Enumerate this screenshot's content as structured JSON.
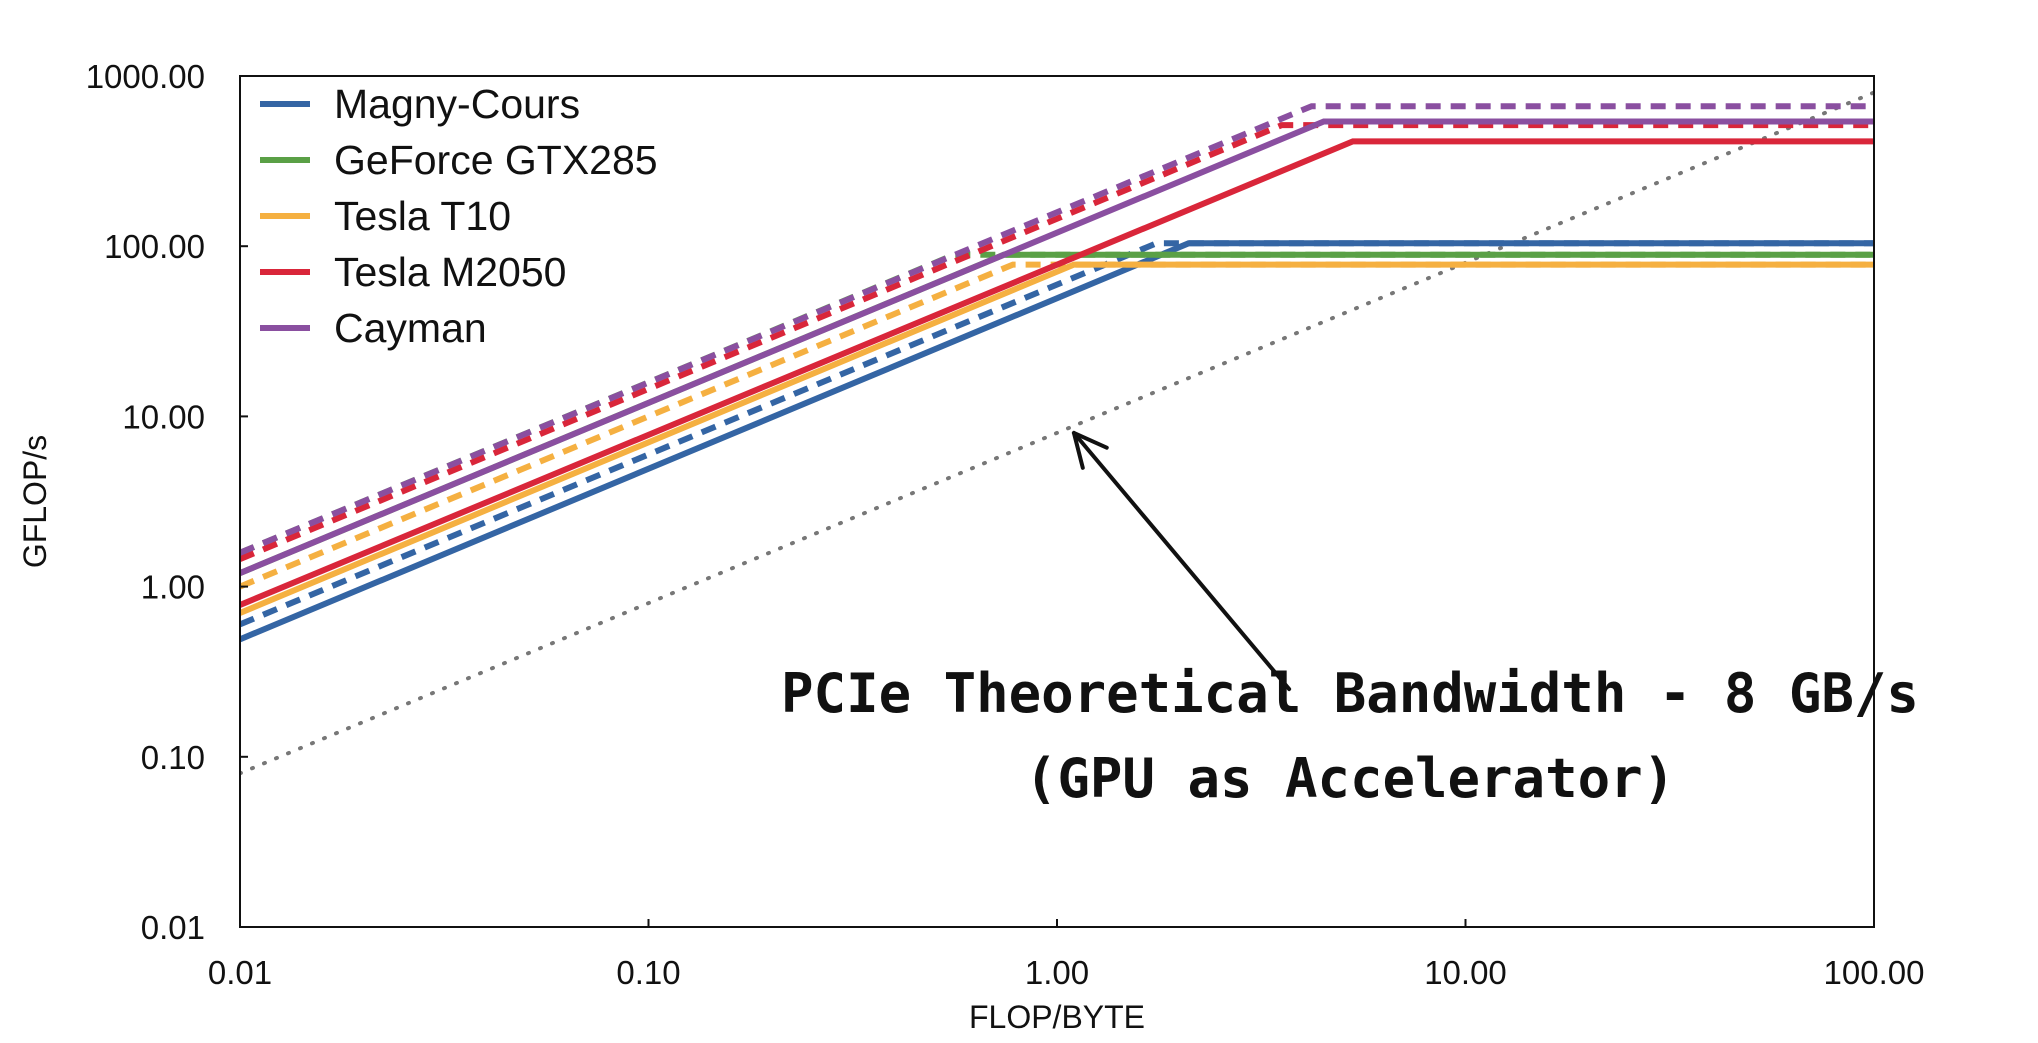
{
  "chart_data": {
    "type": "line",
    "title": "",
    "xlabel": "FLOP/BYTE",
    "ylabel": "GFLOP/s",
    "xscale": "log",
    "yscale": "log",
    "xlim": [
      0.01,
      100
    ],
    "ylim": [
      0.01,
      1000
    ],
    "grid": false,
    "legend_position": "top-left",
    "x_ticks": [
      0.01,
      0.1,
      1,
      10,
      100
    ],
    "x_tick_labels": [
      "0.01",
      "0.10",
      "1.00",
      "10.00",
      "100.00"
    ],
    "y_ticks": [
      0.01,
      0.1,
      1,
      10,
      100,
      1000
    ],
    "y_tick_labels": [
      "0.01",
      "0.10",
      "1.00",
      "10.00",
      "100.00",
      "1000.00"
    ],
    "series": [
      {
        "name": "Magny-Cours",
        "color": "#3465a4",
        "solid": [
          [
            0.01,
            0.49
          ],
          [
            2.1,
            104
          ],
          [
            100,
            104
          ]
        ],
        "dashed": [
          [
            0.01,
            0.6
          ],
          [
            1.75,
            104
          ],
          [
            100,
            104
          ]
        ]
      },
      {
        "name": "GeForce GTX285",
        "color": "#5aa046",
        "solid": [
          [
            0.01,
            1.2
          ],
          [
            0.74,
            89
          ],
          [
            100,
            89
          ]
        ],
        "dashed": [
          [
            0.01,
            1.58
          ],
          [
            0.56,
            89
          ],
          [
            100,
            89
          ]
        ]
      },
      {
        "name": "Tesla T10",
        "color": "#f5b041",
        "solid": [
          [
            0.01,
            0.7
          ],
          [
            1.1,
            78
          ],
          [
            100,
            78
          ]
        ],
        "dashed": [
          [
            0.01,
            1.0
          ],
          [
            0.78,
            78
          ],
          [
            100,
            78
          ]
        ]
      },
      {
        "name": "Tesla M2050",
        "color": "#d9263a",
        "solid": [
          [
            0.01,
            0.78
          ],
          [
            5.3,
            413
          ],
          [
            100,
            413
          ]
        ],
        "dashed": [
          [
            0.01,
            1.45
          ],
          [
            3.55,
            515
          ],
          [
            100,
            515
          ]
        ]
      },
      {
        "name": "Cayman",
        "color": "#8a4fa0",
        "solid": [
          [
            0.01,
            1.2
          ],
          [
            4.5,
            540
          ],
          [
            100,
            540
          ]
        ],
        "dashed": [
          [
            0.01,
            1.58
          ],
          [
            4.2,
            665
          ],
          [
            100,
            665
          ]
        ]
      }
    ],
    "reference_line": {
      "style": "dotted",
      "color": "#777777",
      "points": [
        [
          0.01,
          0.08
        ],
        [
          100,
          800
        ]
      ]
    },
    "annotation": {
      "lines": [
        "PCIe Theoretical Bandwidth - 8 GB/s",
        "(GPU as Accelerator)"
      ],
      "arrow_from": [
        3.7,
        0.25
      ],
      "arrow_to": [
        1.1,
        8.0
      ]
    }
  }
}
